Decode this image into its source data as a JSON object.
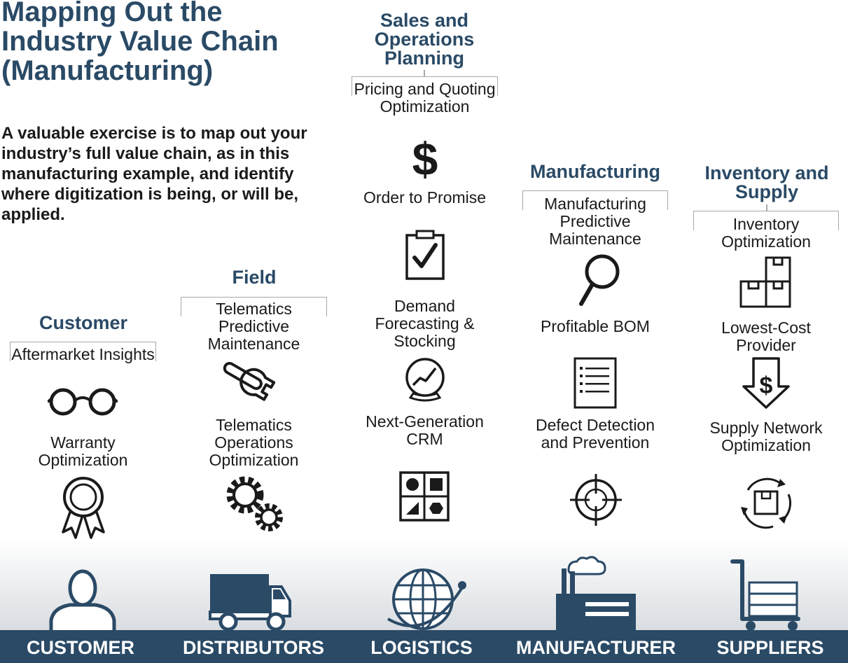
{
  "title": "Mapping Out the Industry Value Chain (Manufacturing)",
  "intro": "A valuable exercise is to map out your industry’s full value chain, as in this manufacturing example, and identify where digitization is being, or will be, applied.",
  "colors": {
    "accent": "#2a4a66",
    "text": "#1a1a1a",
    "bracket": "#a8a8a8"
  },
  "columns": {
    "customer": {
      "heading": "Customer",
      "items": [
        {
          "label": "Aftermarket Insights",
          "icon": "glasses-icon"
        },
        {
          "label": "Warranty Optimization",
          "icon": "award-ribbon-icon"
        }
      ]
    },
    "field": {
      "heading": "Field",
      "items": [
        {
          "label": "Telematics Predictive Maintenance",
          "icon": "wrench-icon"
        },
        {
          "label": "Telematics Operations Optimization",
          "icon": "gears-icon"
        }
      ]
    },
    "sop": {
      "heading": "Sales and Operations Planning",
      "items": [
        {
          "label": "Pricing and Quoting Optimization",
          "icon": "dollar-icon"
        },
        {
          "label": "Order to Promise",
          "icon": "clipboard-check-icon"
        },
        {
          "label": "Demand Forecasting & Stocking",
          "icon": "crystal-ball-icon"
        },
        {
          "label": "Next-Generation CRM",
          "icon": "shapes-grid-icon"
        }
      ]
    },
    "manufacturing": {
      "heading": "Manufacturing",
      "items": [
        {
          "label": "Manufacturing Predictive Maintenance",
          "icon": "magnifier-icon"
        },
        {
          "label": "Profitable BOM",
          "icon": "list-document-icon"
        },
        {
          "label": "Defect Detection and Prevention",
          "icon": "crosshair-icon"
        }
      ]
    },
    "inventory": {
      "heading": "Inventory and Supply",
      "items": [
        {
          "label": "Inventory Optimization",
          "icon": "boxes-icon"
        },
        {
          "label": "Lowest-Cost Provider",
          "icon": "down-arrow-dollar-icon"
        },
        {
          "label": "Supply Network Optimization",
          "icon": "cycle-box-icon"
        }
      ]
    }
  },
  "footer": [
    {
      "label": "CUSTOMER",
      "icon": "person-icon"
    },
    {
      "label": "DISTRIBUTORS",
      "icon": "truck-icon"
    },
    {
      "label": "LOGISTICS",
      "icon": "globe-icon"
    },
    {
      "label": "MANUFACTURER",
      "icon": "factory-icon"
    },
    {
      "label": "SUPPLIERS",
      "icon": "hand-truck-icon"
    }
  ]
}
